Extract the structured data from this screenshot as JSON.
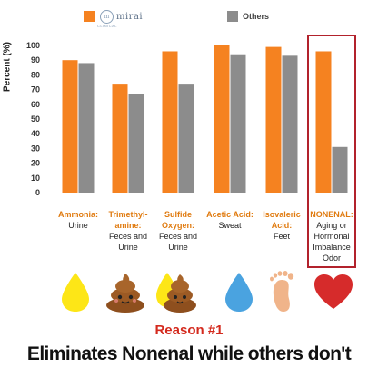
{
  "legend": {
    "mirai_name": "mirai",
    "mirai_sub": "CLINICAL",
    "others_label": "Others"
  },
  "colors": {
    "mirai": "#f58220",
    "others": "#8c8c8c",
    "category_text": "#e07b10",
    "highlight_border": "#b2222c",
    "reason": "#d42a1e"
  },
  "chart_data": {
    "type": "bar",
    "title": "",
    "ylabel": "Percent (%)",
    "xlabel": "",
    "ylim": [
      0,
      100
    ],
    "yticks": [
      0,
      10,
      20,
      30,
      40,
      50,
      60,
      70,
      80,
      90,
      100
    ],
    "grid": false,
    "legend_position": "top",
    "categories": [
      {
        "name": "Ammonia:",
        "source": "Urine"
      },
      {
        "name": "Trimethyl-amine:",
        "source": "Feces and Urine"
      },
      {
        "name": "Sulfide Oxygen:",
        "source": "Feces and Urine"
      },
      {
        "name": "Acetic Acid:",
        "source": "Sweat"
      },
      {
        "name": "Isovaleric Acid:",
        "source": "Feet"
      },
      {
        "name": "NONENAL:",
        "source": "Aging or Hormonal Imbalance Odor"
      }
    ],
    "series": [
      {
        "name": "mirai",
        "values": [
          90,
          74,
          96,
          100,
          99,
          96
        ]
      },
      {
        "name": "Others",
        "values": [
          88,
          67,
          74,
          94,
          93,
          31
        ]
      }
    ]
  },
  "icons": [
    {
      "name": "yellow-drop-icon",
      "color": "#fde617"
    },
    {
      "name": "poop-icon",
      "color": "#9c5a24"
    },
    {
      "name": "poop-with-drop-icon",
      "color": "#9c5a24"
    },
    {
      "name": "blue-drop-icon",
      "color": "#4aa3e0"
    },
    {
      "name": "footprint-icon",
      "color": "#f0b48a"
    },
    {
      "name": "heart-icon",
      "color": "#d62b2b"
    }
  ],
  "reason": "Reason #1",
  "headline": "Eliminates Nonenal while others don't"
}
